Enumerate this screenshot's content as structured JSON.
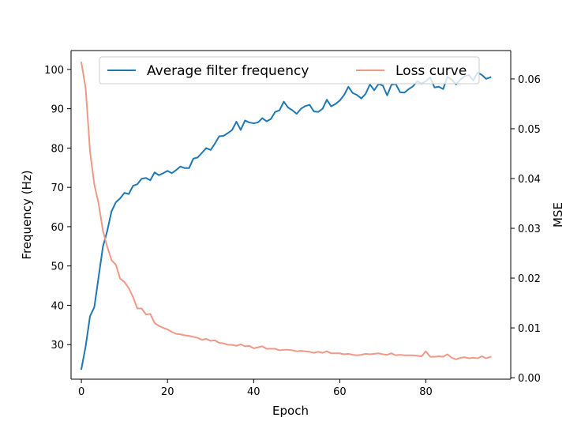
{
  "chart_data": {
    "type": "line",
    "title": "",
    "xlabel": "Epoch",
    "ylabel_left": "Frequency (Hz)",
    "ylabel_right": "MSE",
    "xlim": [
      -2.4,
      99.7
    ],
    "ylim_left": [
      21.2,
      104.8
    ],
    "ylim_right": [
      -0.0003,
      0.0657
    ],
    "xticks": [
      0,
      20,
      40,
      60,
      80
    ],
    "yticks_left": [
      30,
      40,
      50,
      60,
      70,
      80,
      90,
      100
    ],
    "yticks_right": [
      0.0,
      0.01,
      0.02,
      0.03,
      0.04,
      0.05,
      0.06
    ],
    "grid": false,
    "legend_position": "top-center",
    "series": [
      {
        "name": "Average filter frequency",
        "axis": "left",
        "color": "#1f77b4",
        "x": [
          0,
          1,
          2,
          3,
          4,
          5,
          6,
          7,
          8,
          9,
          10,
          11,
          12,
          13,
          14,
          15,
          16,
          17,
          18,
          19,
          20,
          21,
          22,
          23,
          24,
          25,
          26,
          27,
          28,
          29,
          30,
          31,
          32,
          33,
          34,
          35,
          36,
          37,
          38,
          39,
          40,
          41,
          42,
          43,
          44,
          45,
          46,
          47,
          48,
          49,
          50,
          51,
          52,
          53,
          54,
          55,
          56,
          57,
          58,
          59,
          60,
          61,
          62,
          63,
          64,
          65,
          66,
          67,
          68,
          69,
          70,
          71,
          72,
          73,
          74,
          75,
          76,
          77,
          78,
          79,
          80,
          81,
          82,
          83,
          84,
          85,
          86,
          87,
          88,
          89,
          90,
          91,
          92,
          93,
          94,
          95
        ],
        "values": [
          23.8,
          29.6,
          37.2,
          39.5,
          47.2,
          54.9,
          58.9,
          63.9,
          66.2,
          67.2,
          68.6,
          68.3,
          70.4,
          70.8,
          72.2,
          72.4,
          71.8,
          73.8,
          73.1,
          73.6,
          74.2,
          73.6,
          74.4,
          75.3,
          74.9,
          74.9,
          77.3,
          77.6,
          78.8,
          80.0,
          79.5,
          81.1,
          83.0,
          83.1,
          83.8,
          84.6,
          86.7,
          84.6,
          87.0,
          86.5,
          86.3,
          86.5,
          87.6,
          86.8,
          87.4,
          89.2,
          89.6,
          91.8,
          90.3,
          89.6,
          88.7,
          90.0,
          90.7,
          91.0,
          89.3,
          89.2,
          90.0,
          92.3,
          90.6,
          91.2,
          92.1,
          93.5,
          95.6,
          94.0,
          93.5,
          92.6,
          93.8,
          96.2,
          94.7,
          96.3,
          95.9,
          93.4,
          96.1,
          96.3,
          94.2,
          94.1,
          95.0,
          95.7,
          97.0,
          96.4,
          97.0,
          98.0,
          95.4,
          95.6,
          95.0,
          98.1,
          97.4,
          96.2,
          97.4,
          98.3,
          98.6,
          97.2,
          99.2,
          98.6,
          97.6,
          98.0
        ]
      },
      {
        "name": "Loss curve",
        "axis": "right",
        "color": "#f09886",
        "x": [
          0,
          1,
          2,
          3,
          4,
          5,
          6,
          7,
          8,
          9,
          10,
          11,
          12,
          13,
          14,
          15,
          16,
          17,
          18,
          19,
          20,
          21,
          22,
          23,
          24,
          25,
          26,
          27,
          28,
          29,
          30,
          31,
          32,
          33,
          34,
          35,
          36,
          37,
          38,
          39,
          40,
          41,
          42,
          43,
          44,
          45,
          46,
          47,
          48,
          49,
          50,
          51,
          52,
          53,
          54,
          55,
          56,
          57,
          58,
          59,
          60,
          61,
          62,
          63,
          64,
          65,
          66,
          67,
          68,
          69,
          70,
          71,
          72,
          73,
          74,
          75,
          76,
          77,
          78,
          79,
          80,
          81,
          82,
          83,
          84,
          85,
          86,
          87,
          88,
          89,
          90,
          91,
          92,
          93,
          94,
          95
        ],
        "values": [
          0.0633,
          0.0581,
          0.0455,
          0.0388,
          0.035,
          0.0295,
          0.0263,
          0.0236,
          0.0227,
          0.0199,
          0.0192,
          0.018,
          0.0162,
          0.0139,
          0.0139,
          0.0127,
          0.0128,
          0.011,
          0.0104,
          0.01,
          0.0097,
          0.0092,
          0.0088,
          0.0087,
          0.0085,
          0.0084,
          0.0082,
          0.008,
          0.0076,
          0.0078,
          0.0074,
          0.0075,
          0.007,
          0.0069,
          0.0066,
          0.0066,
          0.0064,
          0.0067,
          0.0063,
          0.0064,
          0.0059,
          0.0061,
          0.0063,
          0.0058,
          0.0058,
          0.0058,
          0.0055,
          0.0056,
          0.0056,
          0.0055,
          0.0053,
          0.0054,
          0.0053,
          0.0052,
          0.005,
          0.0052,
          0.005,
          0.0053,
          0.0049,
          0.0049,
          0.0049,
          0.0047,
          0.0048,
          0.0046,
          0.0045,
          0.0046,
          0.0048,
          0.0047,
          0.0048,
          0.0049,
          0.0047,
          0.0046,
          0.0049,
          0.0045,
          0.0046,
          0.0045,
          0.0045,
          0.0045,
          0.0044,
          0.0043,
          0.0053,
          0.0042,
          0.0042,
          0.0043,
          0.0042,
          0.0047,
          0.004,
          0.0037,
          0.004,
          0.0041,
          0.0039,
          0.004,
          0.0039,
          0.0043,
          0.0039,
          0.0042
        ]
      }
    ]
  }
}
